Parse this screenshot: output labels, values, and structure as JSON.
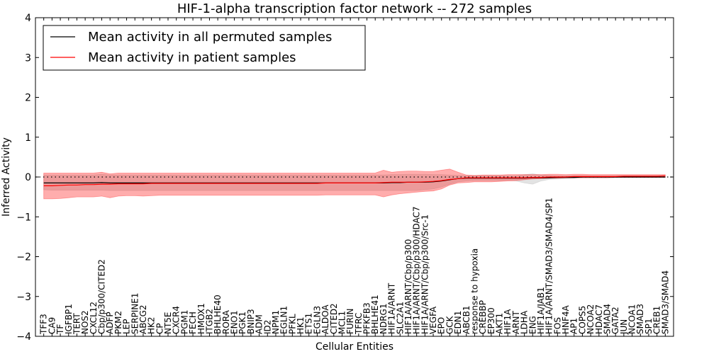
{
  "chart_data": {
    "type": "line",
    "title": "HIF-1-alpha transcription factor network -- 272 samples",
    "xlabel": "Cellular Entities",
    "ylabel": "Inferred Activity",
    "ylim": [
      -4,
      4
    ],
    "yticks": [
      -4,
      -3,
      -2,
      -1,
      0,
      1,
      2,
      3,
      4
    ],
    "grid": false,
    "legend_position": "top-left",
    "reference_line": 0,
    "categories": [
      "TFF3",
      "CA9",
      "TF",
      "IGFBP1",
      "TERT",
      "NOS2",
      "CXCL12",
      "Cbp/p300/CITED2",
      "ADFP",
      "PKM2",
      "LEP",
      "SERPINE1",
      "ABCG2",
      "HK2",
      "CP",
      "NT5E",
      "CXCR4",
      "PGM1",
      "FECH",
      "HMOX1",
      "ITGB2",
      "BHLHE40",
      "RORA",
      "ENO1",
      "PGK1",
      "BNIP3",
      "ADM",
      "ID2",
      "NPM1",
      "EGLN1",
      "PFKL",
      "HK1",
      "ETS1",
      "EGLN3",
      "ALDOA",
      "CITED2",
      "MCL1",
      "FURIN",
      "TFRC",
      "PFKFB3",
      "BHLHE41",
      "NDRG1",
      "HIF1A/ARNT",
      "SLC2A1",
      "HIF1A/ARNT/Cbp/p300",
      "HIF1A/ARNT/Cbp/p300/HDAC7",
      "HIF1A/ARNT/Cbp/p300/Src-1",
      "VEGFA",
      "EPO",
      "GCK",
      "EDN1",
      "ABCB1",
      "response to hypoxia",
      "CREBBP",
      "EP300",
      "AKT1",
      "HIF1A",
      "ARNT",
      "LDHA",
      "ENG",
      "HIF1A/JAB1",
      "HIF1A/ARNT/SMAD3/SMAD4/SP1",
      "FOS",
      "HNF4A",
      "AP1",
      "COPS5",
      "NCOA2",
      "HDAC7",
      "SMAD4",
      "GATA2",
      "JUN",
      "NCOA1",
      "SMAD3",
      "SP1",
      "CREB1",
      "SMAD3/SMAD4"
    ],
    "series": [
      {
        "name": "Mean activity in all permuted samples",
        "color": "#000000",
        "values": [
          -0.15,
          -0.15,
          -0.15,
          -0.15,
          -0.15,
          -0.15,
          -0.15,
          -0.14,
          -0.15,
          -0.15,
          -0.15,
          -0.15,
          -0.15,
          -0.15,
          -0.15,
          -0.15,
          -0.15,
          -0.15,
          -0.15,
          -0.15,
          -0.15,
          -0.15,
          -0.15,
          -0.15,
          -0.15,
          -0.15,
          -0.15,
          -0.15,
          -0.15,
          -0.15,
          -0.15,
          -0.15,
          -0.15,
          -0.15,
          -0.15,
          -0.15,
          -0.15,
          -0.15,
          -0.15,
          -0.15,
          -0.15,
          -0.15,
          -0.14,
          -0.14,
          -0.13,
          -0.13,
          -0.13,
          -0.12,
          -0.1,
          -0.07,
          -0.04,
          -0.03,
          -0.03,
          -0.03,
          -0.03,
          -0.03,
          -0.03,
          -0.03,
          -0.03,
          -0.02,
          -0.02,
          -0.02,
          -0.01,
          -0.01,
          -0.01,
          0.0,
          0.0,
          0.0,
          0.0,
          0.0,
          0.0,
          0.0,
          0.0,
          0.0,
          0.0,
          0.0
        ],
        "band_lower": [
          -0.32,
          -0.33,
          -0.33,
          -0.33,
          -0.33,
          -0.33,
          -0.33,
          -0.33,
          -0.34,
          -0.34,
          -0.34,
          -0.34,
          -0.34,
          -0.34,
          -0.34,
          -0.34,
          -0.34,
          -0.34,
          -0.34,
          -0.34,
          -0.34,
          -0.34,
          -0.34,
          -0.34,
          -0.34,
          -0.34,
          -0.34,
          -0.34,
          -0.34,
          -0.34,
          -0.34,
          -0.34,
          -0.34,
          -0.34,
          -0.34,
          -0.34,
          -0.34,
          -0.34,
          -0.34,
          -0.34,
          -0.34,
          -0.34,
          -0.34,
          -0.34,
          -0.34,
          -0.34,
          -0.32,
          -0.3,
          -0.25,
          -0.18,
          -0.12,
          -0.1,
          -0.09,
          -0.09,
          -0.09,
          -0.09,
          -0.08,
          -0.1,
          -0.15,
          -0.18,
          -0.1,
          -0.06,
          -0.05,
          -0.04,
          -0.03,
          -0.02,
          -0.02,
          -0.02,
          -0.02,
          -0.02,
          -0.02,
          -0.02,
          -0.02,
          -0.02,
          -0.02,
          -0.02
        ],
        "band_upper": [
          0.05,
          0.05,
          0.05,
          0.05,
          0.05,
          0.05,
          0.05,
          0.07,
          0.05,
          0.05,
          0.05,
          0.05,
          0.05,
          0.05,
          0.05,
          0.05,
          0.05,
          0.05,
          0.05,
          0.05,
          0.05,
          0.05,
          0.05,
          0.05,
          0.05,
          0.05,
          0.05,
          0.05,
          0.05,
          0.05,
          0.05,
          0.05,
          0.05,
          0.05,
          0.05,
          0.05,
          0.05,
          0.05,
          0.05,
          0.05,
          0.05,
          0.05,
          0.06,
          0.06,
          0.07,
          0.07,
          0.07,
          0.06,
          0.06,
          0.05,
          0.04,
          0.03,
          0.03,
          0.03,
          0.03,
          0.03,
          0.03,
          0.03,
          0.06,
          0.08,
          0.05,
          0.04,
          0.03,
          0.03,
          0.03,
          0.03,
          0.03,
          0.03,
          0.03,
          0.03,
          0.03,
          0.03,
          0.03,
          0.03,
          0.03,
          0.03
        ],
        "band_color": "#c0c0c0"
      },
      {
        "name": "Mean activity in patient samples",
        "color": "#ff0000",
        "values": [
          -0.22,
          -0.22,
          -0.21,
          -0.2,
          -0.2,
          -0.19,
          -0.19,
          -0.18,
          -0.18,
          -0.17,
          -0.17,
          -0.17,
          -0.17,
          -0.16,
          -0.16,
          -0.16,
          -0.16,
          -0.16,
          -0.16,
          -0.16,
          -0.16,
          -0.16,
          -0.16,
          -0.16,
          -0.16,
          -0.16,
          -0.16,
          -0.16,
          -0.16,
          -0.16,
          -0.16,
          -0.16,
          -0.16,
          -0.16,
          -0.15,
          -0.15,
          -0.15,
          -0.15,
          -0.15,
          -0.15,
          -0.15,
          -0.14,
          -0.13,
          -0.13,
          -0.13,
          -0.13,
          -0.12,
          -0.11,
          -0.09,
          -0.06,
          -0.04,
          -0.02,
          -0.02,
          -0.02,
          -0.02,
          -0.02,
          -0.02,
          -0.02,
          -0.02,
          -0.01,
          -0.01,
          0.0,
          0.0,
          0.0,
          0.01,
          0.01,
          0.01,
          0.01,
          0.01,
          0.01,
          0.02,
          0.02,
          0.02,
          0.02,
          0.02,
          0.03
        ],
        "band_lower": [
          -0.55,
          -0.55,
          -0.54,
          -0.52,
          -0.5,
          -0.5,
          -0.5,
          -0.48,
          -0.52,
          -0.48,
          -0.47,
          -0.47,
          -0.48,
          -0.47,
          -0.46,
          -0.46,
          -0.46,
          -0.46,
          -0.46,
          -0.46,
          -0.46,
          -0.46,
          -0.46,
          -0.46,
          -0.46,
          -0.46,
          -0.46,
          -0.46,
          -0.46,
          -0.46,
          -0.46,
          -0.46,
          -0.46,
          -0.46,
          -0.45,
          -0.45,
          -0.45,
          -0.45,
          -0.45,
          -0.45,
          -0.45,
          -0.5,
          -0.45,
          -0.42,
          -0.4,
          -0.38,
          -0.36,
          -0.35,
          -0.3,
          -0.2,
          -0.15,
          -0.14,
          -0.12,
          -0.12,
          -0.12,
          -0.11,
          -0.1,
          -0.09,
          -0.07,
          -0.05,
          -0.04,
          -0.03,
          -0.03,
          -0.02,
          -0.02,
          -0.02,
          -0.02,
          -0.02,
          -0.02,
          -0.01,
          -0.01,
          -0.01,
          -0.01,
          -0.01,
          -0.01,
          -0.01
        ],
        "band_upper": [
          0.1,
          0.1,
          0.1,
          0.1,
          0.1,
          0.1,
          0.1,
          0.12,
          0.08,
          0.1,
          0.1,
          0.1,
          0.1,
          0.1,
          0.1,
          0.1,
          0.1,
          0.1,
          0.1,
          0.1,
          0.1,
          0.1,
          0.1,
          0.1,
          0.1,
          0.1,
          0.1,
          0.1,
          0.1,
          0.1,
          0.1,
          0.1,
          0.1,
          0.1,
          0.1,
          0.1,
          0.1,
          0.1,
          0.1,
          0.1,
          0.1,
          0.17,
          0.12,
          0.14,
          0.15,
          0.15,
          0.14,
          0.14,
          0.17,
          0.2,
          0.12,
          0.05,
          0.04,
          0.05,
          0.05,
          0.05,
          0.06,
          0.06,
          0.06,
          0.06,
          0.06,
          0.07,
          0.07,
          0.06,
          0.07,
          0.07,
          0.06,
          0.06,
          0.06,
          0.06,
          0.06,
          0.06,
          0.06,
          0.06,
          0.06,
          0.06
        ],
        "band_color": "#ff0000"
      }
    ]
  }
}
